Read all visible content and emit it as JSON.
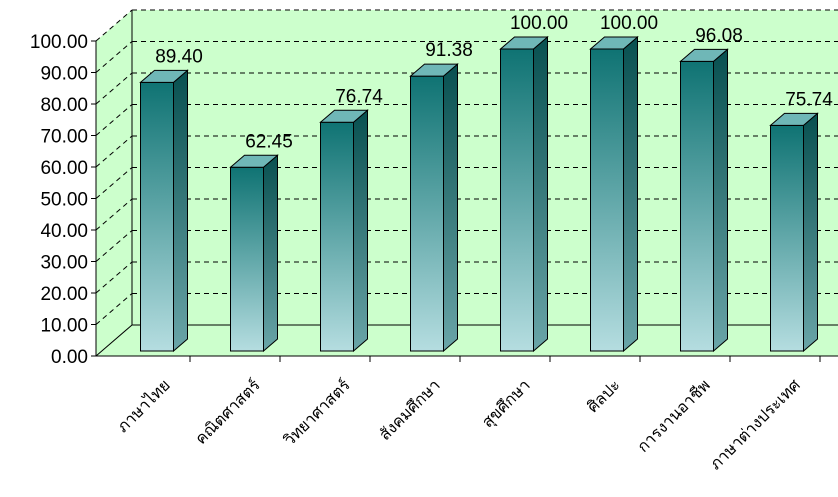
{
  "chart_data": {
    "type": "bar",
    "title": "",
    "xlabel": "",
    "ylabel": "",
    "ylim": [
      0,
      100
    ],
    "y_ticks": [
      "0.00",
      "10.00",
      "20.00",
      "30.00",
      "40.00",
      "50.00",
      "60.00",
      "70.00",
      "80.00",
      "90.00",
      "100.00"
    ],
    "categories": [
      "ภาษาไทย",
      "คณิตศาสตร์",
      "วิทยาศาสตร์",
      "สังคมศึกษา",
      "สุขศึกษา",
      "ศิลปะ",
      "การงานอาชีพ",
      "ภาษาต่างประเทศ"
    ],
    "values": [
      89.4,
      62.45,
      76.74,
      91.38,
      100.0,
      100.0,
      96.08,
      75.74
    ],
    "data_labels": [
      "89.40",
      "62.45",
      "76.74",
      "91.38",
      "100.00",
      "100.00",
      "96.08",
      "75.74"
    ],
    "grid": true,
    "legend": "none",
    "style": "3d-column",
    "colors": {
      "bar_top": "#0f7373",
      "bar_bottom": "#b5dde0",
      "bar_side": "#0b5c5c",
      "bar_cap": "#6fb7b7",
      "wall": "#ccffcc",
      "floor": "#ccffcc",
      "grid": "#000000"
    }
  }
}
